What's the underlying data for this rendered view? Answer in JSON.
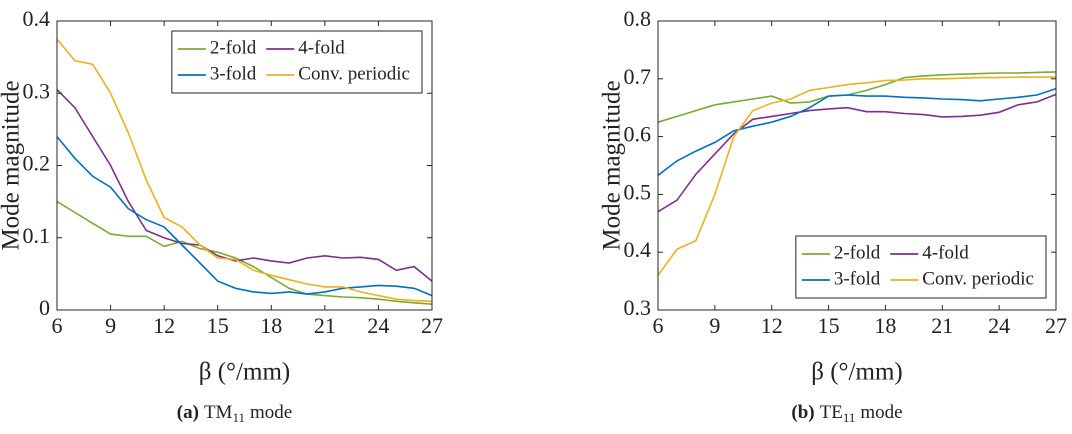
{
  "chart_data": [
    {
      "type": "line",
      "x_label": "β (°/mm)",
      "y_label": "Mode magnitude",
      "caption": {
        "tag": "(a)",
        "text": "TM",
        "sub": "11",
        "tail": "mode"
      },
      "x": [
        6,
        7,
        8,
        9,
        10,
        11,
        12,
        13,
        14,
        15,
        16,
        17,
        18,
        19,
        20,
        21,
        22,
        23,
        24,
        25,
        26,
        27
      ],
      "xlim": [
        6,
        27
      ],
      "xticks": [
        6,
        9,
        12,
        15,
        18,
        21,
        24,
        27
      ],
      "ylim": [
        0,
        0.4
      ],
      "yticks": [
        0,
        0.1,
        0.2,
        0.3,
        0.4
      ],
      "legend": "upper right",
      "series": [
        {
          "name": "2-fold",
          "color": "#77ac30",
          "values": [
            0.15,
            0.135,
            0.12,
            0.105,
            0.102,
            0.102,
            0.088,
            0.095,
            0.085,
            0.08,
            0.072,
            0.06,
            0.045,
            0.03,
            0.022,
            0.02,
            0.018,
            0.017,
            0.015,
            0.012,
            0.01,
            0.008
          ]
        },
        {
          "name": "4-fold",
          "color": "#7e2f8e",
          "values": [
            0.305,
            0.28,
            0.24,
            0.2,
            0.15,
            0.11,
            0.1,
            0.092,
            0.09,
            0.075,
            0.068,
            0.072,
            0.068,
            0.065,
            0.072,
            0.075,
            0.072,
            0.073,
            0.07,
            0.055,
            0.06,
            0.04
          ]
        },
        {
          "name": "3-fold",
          "color": "#0072bd",
          "values": [
            0.24,
            0.21,
            0.185,
            0.17,
            0.14,
            0.125,
            0.115,
            0.09,
            0.065,
            0.04,
            0.03,
            0.025,
            0.023,
            0.025,
            0.022,
            0.025,
            0.03,
            0.032,
            0.034,
            0.033,
            0.03,
            0.02
          ]
        },
        {
          "name": "Conv. periodic",
          "color": "#edb120",
          "values": [
            0.375,
            0.345,
            0.34,
            0.3,
            0.245,
            0.18,
            0.128,
            0.115,
            0.09,
            0.072,
            0.07,
            0.055,
            0.048,
            0.042,
            0.036,
            0.032,
            0.032,
            0.025,
            0.02,
            0.015,
            0.013,
            0.012
          ]
        }
      ]
    },
    {
      "type": "line",
      "x_label": "β (°/mm)",
      "y_label": "Mode magnitude",
      "caption": {
        "tag": "(b)",
        "text": "TE",
        "sub": "11",
        "tail": "mode"
      },
      "x": [
        6,
        7,
        8,
        9,
        10,
        11,
        12,
        13,
        14,
        15,
        16,
        17,
        18,
        19,
        20,
        21,
        22,
        23,
        24,
        25,
        26,
        27
      ],
      "xlim": [
        6,
        27
      ],
      "xticks": [
        6,
        9,
        12,
        15,
        18,
        21,
        24,
        27
      ],
      "ylim": [
        0.3,
        0.8
      ],
      "yticks": [
        0.3,
        0.4,
        0.5,
        0.6,
        0.7,
        0.8
      ],
      "legend": "lower right",
      "series": [
        {
          "name": "2-fold",
          "color": "#77ac30",
          "values": [
            0.625,
            0.635,
            0.645,
            0.655,
            0.66,
            0.665,
            0.67,
            0.658,
            0.66,
            0.67,
            0.672,
            0.68,
            0.69,
            0.702,
            0.705,
            0.707,
            0.708,
            0.709,
            0.71,
            0.71,
            0.711,
            0.712
          ]
        },
        {
          "name": "4-fold",
          "color": "#7e2f8e",
          "values": [
            0.47,
            0.49,
            0.535,
            0.57,
            0.605,
            0.63,
            0.635,
            0.64,
            0.645,
            0.648,
            0.65,
            0.643,
            0.643,
            0.64,
            0.638,
            0.634,
            0.635,
            0.637,
            0.642,
            0.655,
            0.66,
            0.673
          ]
        },
        {
          "name": "3-fold",
          "color": "#0072bd",
          "values": [
            0.533,
            0.558,
            0.575,
            0.59,
            0.61,
            0.618,
            0.625,
            0.635,
            0.65,
            0.67,
            0.672,
            0.67,
            0.67,
            0.668,
            0.667,
            0.665,
            0.664,
            0.662,
            0.665,
            0.668,
            0.672,
            0.683
          ]
        },
        {
          "name": "Conv. periodic",
          "color": "#edb120",
          "values": [
            0.36,
            0.405,
            0.42,
            0.5,
            0.6,
            0.645,
            0.658,
            0.665,
            0.68,
            0.685,
            0.69,
            0.693,
            0.697,
            0.698,
            0.7,
            0.7,
            0.701,
            0.702,
            0.702,
            0.703,
            0.703,
            0.703
          ]
        }
      ]
    }
  ]
}
